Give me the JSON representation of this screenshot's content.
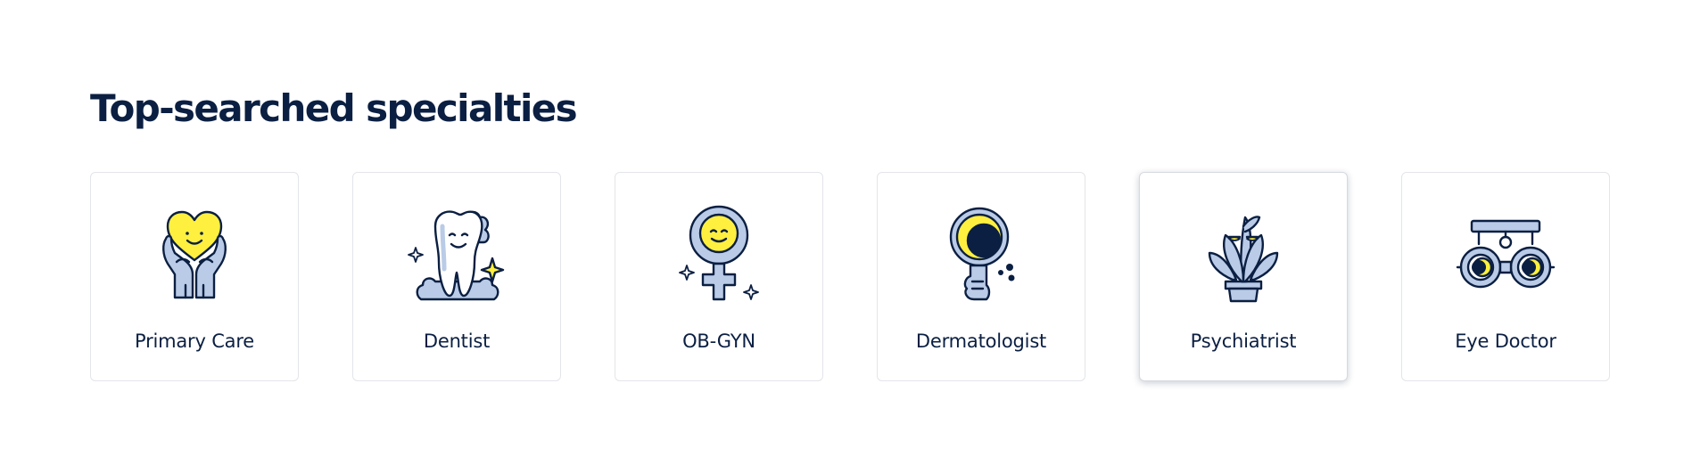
{
  "section": {
    "title": "Top-searched specialties"
  },
  "specialties": [
    {
      "label": "Primary Care",
      "icon": "heart-hands-icon"
    },
    {
      "label": "Dentist",
      "icon": "tooth-icon"
    },
    {
      "label": "OB-GYN",
      "icon": "female-symbol-icon"
    },
    {
      "label": "Dermatologist",
      "icon": "magnifying-glass-icon"
    },
    {
      "label": "Psychiatrist",
      "icon": "plant-icon"
    },
    {
      "label": "Eye Doctor",
      "icon": "phoropter-icon"
    }
  ],
  "colors": {
    "navy": "#0b1f42",
    "yellow": "#fff03f",
    "light_blue": "#b9cbe6",
    "card_border": "#e3e5ea"
  }
}
